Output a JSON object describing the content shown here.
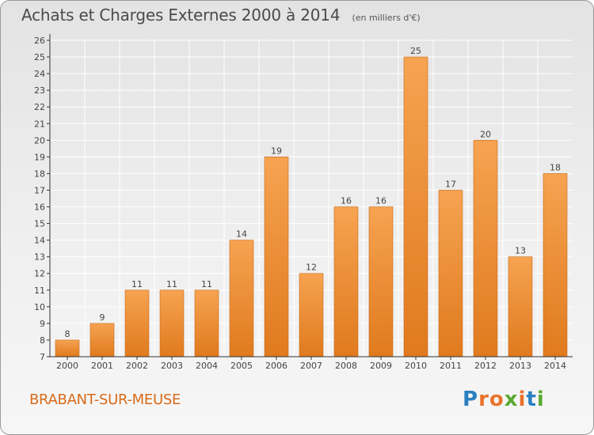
{
  "title": "Achats et Charges Externes 2000 à 2014",
  "subtitle": "(en milliers d'€)",
  "location": "BRABANT-SUR-MEUSE",
  "logo": {
    "text": "Proxiti",
    "letters": [
      {
        "ch": "P",
        "color": "#2a7fc0"
      },
      {
        "ch": "r",
        "color": "#e8732a"
      },
      {
        "ch": "o",
        "color": "#e8732a"
      },
      {
        "ch": "x",
        "color": "#5aaa32"
      },
      {
        "ch": "i",
        "color": "#e8732a"
      },
      {
        "ch": "t",
        "color": "#2a7fc0"
      },
      {
        "ch": "i",
        "color": "#5aaa32"
      }
    ]
  },
  "colors": {
    "bar_top": "#f6a351",
    "bar_bottom": "#e07a1e",
    "bar_edge": "#c8691a",
    "grid": "#ffffff",
    "axis": "#333333",
    "text": "#444444",
    "location": "#d86a1a"
  },
  "chart_data": {
    "type": "bar",
    "categories": [
      "2000",
      "2001",
      "2002",
      "2003",
      "2004",
      "2005",
      "2006",
      "2007",
      "2008",
      "2009",
      "2010",
      "2011",
      "2012",
      "2013",
      "2014"
    ],
    "values": [
      8,
      9,
      11,
      11,
      11,
      14,
      19,
      12,
      16,
      16,
      25,
      17,
      20,
      13,
      18
    ],
    "ylim": [
      7,
      26
    ],
    "yticks": [
      7,
      8,
      9,
      10,
      11,
      12,
      13,
      14,
      15,
      16,
      17,
      18,
      19,
      20,
      21,
      22,
      23,
      24,
      25,
      26
    ],
    "grid": true,
    "data_labels": true
  }
}
